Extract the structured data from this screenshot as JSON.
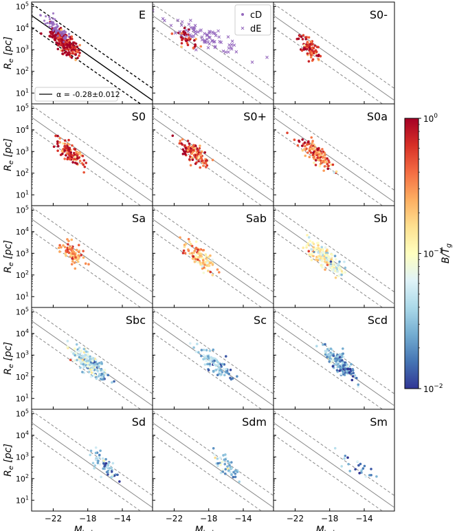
{
  "chart_data": {
    "type": "scatter",
    "grid": "5x3",
    "xlim": [
      -24.5,
      -10.5
    ],
    "ylim_log10": [
      0.5,
      5.2
    ],
    "x_ticks": [
      -22,
      -18,
      -14
    ],
    "x_tick_labels": [
      "−22",
      "−18",
      "−14"
    ],
    "y_ticks_log10": [
      1,
      2,
      3,
      4,
      5
    ],
    "y_tick_labels": [
      "10",
      "10",
      "10",
      "10",
      "10"
    ],
    "y_tick_exponents": [
      "1",
      "2",
      "3",
      "4",
      "5"
    ],
    "ylabel": "R",
    "ylabel_sub": "e",
    "ylabel_unit": " [pc]",
    "xlabel": "M",
    "xlabel_sub": "bulge, g",
    "fit": {
      "slope": -0.28,
      "intercept_at_x0": 3.32,
      "x0": -20,
      "offset_dex": 0.55
    },
    "fit_legend": "α = -0.28±0.012",
    "colorbar": {
      "label": "B/T",
      "label_sub": "g",
      "ticks": [
        "10",
        "10",
        "10"
      ],
      "tick_exponents": [
        "0",
        "−1",
        "−2"
      ],
      "range_log10": [
        -2,
        0
      ],
      "colormap": "RdYlBu_r"
    },
    "legend": [
      {
        "label": "cD",
        "marker": "dot",
        "color": "#9467bd"
      },
      {
        "label": "dE",
        "marker": "x",
        "color": "#9467bd"
      }
    ],
    "panels": [
      {
        "label": "E",
        "x_center": -20.6,
        "x_spread": 1.5,
        "y_slope": -0.28,
        "y_center": 3.3,
        "bt_log10": -0.05,
        "n": 220,
        "cd_overlay": true
      },
      {
        "label": "",
        "x_center": -20.5,
        "x_spread": 1.2,
        "y_slope": -0.28,
        "y_center": 3.45,
        "bt_log10": -0.1,
        "n": 40,
        "de_overlay": true
      },
      {
        "label": "S0-",
        "x_center": -20.4,
        "x_spread": 1.2,
        "y_slope": -0.28,
        "y_center": 3.1,
        "bt_log10": -0.2,
        "n": 100
      },
      {
        "label": "S0",
        "x_center": -20.0,
        "x_spread": 1.4,
        "y_slope": -0.28,
        "y_center": 2.95,
        "bt_log10": -0.3,
        "n": 110
      },
      {
        "label": "S0+",
        "x_center": -19.7,
        "x_spread": 1.5,
        "y_slope": -0.28,
        "y_center": 2.95,
        "bt_log10": -0.3,
        "n": 130
      },
      {
        "label": "S0a",
        "x_center": -19.6,
        "x_spread": 1.6,
        "y_slope": -0.28,
        "y_center": 2.9,
        "bt_log10": -0.4,
        "n": 130
      },
      {
        "label": "Sa",
        "x_center": -19.6,
        "x_spread": 1.2,
        "y_slope": -0.28,
        "y_center": 2.9,
        "bt_log10": -0.55,
        "n": 80
      },
      {
        "label": "Sab",
        "x_center": -19.0,
        "x_spread": 1.4,
        "y_slope": -0.28,
        "y_center": 2.8,
        "bt_log10": -0.75,
        "n": 110
      },
      {
        "label": "Sb",
        "x_center": -18.4,
        "x_spread": 1.9,
        "y_slope": -0.28,
        "y_center": 2.75,
        "bt_log10": -1.05,
        "n": 200
      },
      {
        "label": "Sbc",
        "x_center": -17.8,
        "x_spread": 1.9,
        "y_slope": -0.28,
        "y_center": 2.6,
        "bt_log10": -1.35,
        "n": 200
      },
      {
        "label": "Sc",
        "x_center": -17.2,
        "x_spread": 1.8,
        "y_slope": -0.28,
        "y_center": 2.55,
        "bt_log10": -1.55,
        "n": 90
      },
      {
        "label": "Scd",
        "x_center": -16.8,
        "x_spread": 1.6,
        "y_slope": -0.28,
        "y_center": 2.6,
        "bt_log10": -1.6,
        "n": 160
      },
      {
        "label": "Sd",
        "x_center": -16.2,
        "x_spread": 1.4,
        "y_slope": -0.28,
        "y_center": 2.65,
        "bt_log10": -1.55,
        "n": 60
      },
      {
        "label": "Sdm",
        "x_center": -15.9,
        "x_spread": 1.5,
        "y_slope": -0.28,
        "y_center": 2.6,
        "bt_log10": -1.5,
        "n": 50
      },
      {
        "label": "Sm",
        "x_center": -14.5,
        "x_spread": 2.2,
        "y_slope": -0.2,
        "y_center": 2.55,
        "bt_log10": -1.7,
        "n": 22
      }
    ]
  }
}
